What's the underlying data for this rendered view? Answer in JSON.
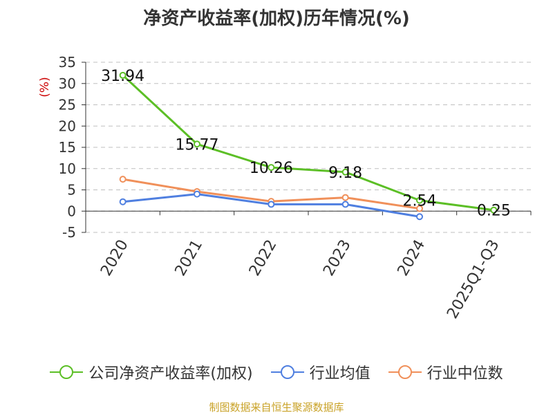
{
  "chart_data": {
    "type": "line",
    "title": "净资产收益率(加权)历年情况(%)",
    "ylabel": "(%)",
    "xlabel": "",
    "categories": [
      "2020",
      "2021",
      "2022",
      "2023",
      "2024",
      "2025Q1-Q3"
    ],
    "ylim": [
      -5,
      35
    ],
    "yticks": [
      -5,
      0,
      5,
      10,
      15,
      20,
      25,
      30,
      35
    ],
    "grid": "horizontal-dashed",
    "legend_position": "bottom",
    "series": [
      {
        "name": "公司净资产收益率(加权)",
        "color": "#5cbf26",
        "values": [
          31.94,
          15.77,
          10.26,
          9.18,
          2.54,
          0.25
        ],
        "labels": [
          "31.94",
          "15.77",
          "10.26",
          "9.18",
          "2.54",
          "0.25"
        ]
      },
      {
        "name": "行业均值",
        "color": "#4f7fe0",
        "values": [
          2.2,
          4.0,
          1.6,
          1.6,
          -1.3,
          null
        ]
      },
      {
        "name": "行业中位数",
        "color": "#f0905a",
        "values": [
          7.5,
          4.6,
          2.3,
          3.2,
          0.6,
          null
        ]
      }
    ]
  },
  "source": "制图数据来自恒生聚源数据库"
}
